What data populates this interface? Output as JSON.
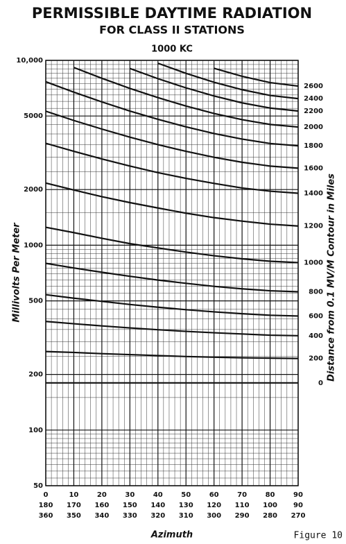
{
  "chart_data": {
    "type": "line",
    "title": "PERMISSIBLE DAYTIME RADIATION",
    "subtitle": "FOR CLASS II STATIONS",
    "annotation": "1000 KC",
    "ylabel": "Millivolts Per Meter",
    "y2label": "Distance from 0.1 MV/M Contour in Miles",
    "xlabel": "Azimuth",
    "caption": "Figure 10",
    "log_y": true,
    "grid": true,
    "color": "#111111",
    "x": [
      0,
      10,
      20,
      30,
      40,
      50,
      60,
      70,
      80,
      90
    ],
    "xlim": [
      0,
      90
    ],
    "xticks": [
      0,
      10,
      20,
      30,
      40,
      50,
      60,
      70,
      80,
      90
    ],
    "xtick_label_rows": [
      [
        180,
        170,
        160,
        150,
        140,
        130,
        120,
        110,
        100,
        90
      ],
      [
        360,
        350,
        340,
        330,
        320,
        310,
        300,
        290,
        280,
        270
      ]
    ],
    "ylim": [
      50,
      10000
    ],
    "yticks": [
      {
        "value": 10000,
        "label": "10,000"
      },
      5000,
      2000,
      1000,
      500,
      200,
      100,
      50
    ],
    "series": [
      {
        "name": "0",
        "values": [
          180,
          180,
          180,
          180,
          180,
          180,
          180,
          180,
          180,
          180
        ]
      },
      {
        "name": "200",
        "values": [
          266,
          263,
          259,
          256,
          253,
          250,
          248,
          246,
          245,
          244
        ]
      },
      {
        "name": "400",
        "values": [
          387,
          376,
          366,
          357,
          349,
          342,
          336,
          331,
          326,
          324
        ]
      },
      {
        "name": "600",
        "values": [
          540,
          517,
          497,
          478,
          462,
          448,
          436,
          426,
          418,
          414
        ]
      },
      {
        "name": "800",
        "values": [
          798,
          753,
          714,
          679,
          648,
          622,
          599,
          581,
          567,
          560
        ]
      },
      {
        "name": "1000",
        "values": [
          1250,
          1170,
          1090,
          1020,
          967,
          918,
          877,
          844,
          819,
          805
        ]
      },
      {
        "name": "1200",
        "values": [
          2170,
          1990,
          1830,
          1700,
          1590,
          1490,
          1410,
          1350,
          1300,
          1270
        ]
      },
      {
        "name": "1400",
        "values": [
          3560,
          3220,
          2930,
          2680,
          2470,
          2300,
          2160,
          2040,
          1960,
          1910
        ]
      },
      {
        "name": "1600",
        "values": [
          5310,
          4730,
          4250,
          3840,
          3500,
          3220,
          2990,
          2810,
          2680,
          2610
        ]
      },
      {
        "name": "1800",
        "values": [
          7660,
          6730,
          5960,
          5320,
          4800,
          4370,
          4020,
          3750,
          3550,
          3450
        ]
      },
      {
        "name": "2000",
        "values": [
          null,
          9150,
          8000,
          7050,
          6290,
          5660,
          5160,
          4780,
          4500,
          4360
        ]
      },
      {
        "name": "2200",
        "values": [
          null,
          null,
          null,
          9040,
          7960,
          7100,
          6420,
          5890,
          5520,
          5320
        ]
      },
      {
        "name": "2400",
        "values": [
          null,
          null,
          null,
          null,
          9650,
          8510,
          7610,
          6940,
          6460,
          6210
        ]
      },
      {
        "name": "2600",
        "values": [
          null,
          null,
          null,
          null,
          null,
          null,
          9060,
          8200,
          7580,
          7260
        ]
      }
    ]
  }
}
